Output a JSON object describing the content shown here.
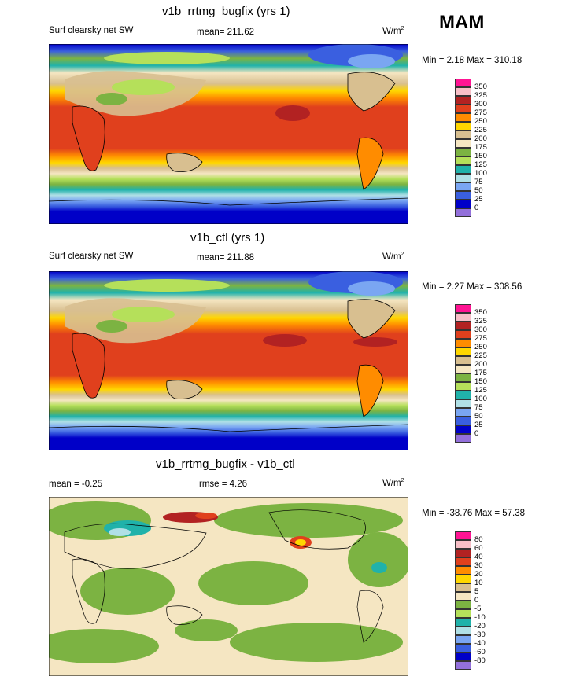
{
  "season": "MAM",
  "panels": [
    {
      "title": "v1b_rrtmg_bugfix (yrs 1)",
      "left_label": "Surf clearsky net SW",
      "center_label": "mean= 211.62",
      "units": "W/m",
      "units_sup": "2",
      "minmax": "Min =   2.18 Max = 310.18",
      "colorbar": {
        "labels": [
          "350",
          "325",
          "300",
          "275",
          "250",
          "225",
          "200",
          "175",
          "150",
          "125",
          "100",
          "75",
          "50",
          "25",
          "0"
        ],
        "colors": [
          "#ff1493",
          "#f7bfc7",
          "#b22222",
          "#e0401d",
          "#ff8c00",
          "#ffd700",
          "#d8bf90",
          "#f5e6c2",
          "#7cb342",
          "#b5e05a",
          "#20b2aa",
          "#b0e0e6",
          "#7aa6f2",
          "#3a5fe0",
          "#0000c8",
          "#9370db"
        ]
      }
    },
    {
      "title": "v1b_ctl (yrs 1)",
      "left_label": "Surf clearsky net SW",
      "center_label": "mean= 211.88",
      "units": "W/m",
      "units_sup": "2",
      "minmax": "Min =   2.27 Max = 308.56",
      "colorbar": {
        "labels": [
          "350",
          "325",
          "300",
          "275",
          "250",
          "225",
          "200",
          "175",
          "150",
          "125",
          "100",
          "75",
          "50",
          "25",
          "0"
        ],
        "colors": [
          "#ff1493",
          "#f7bfc7",
          "#b22222",
          "#e0401d",
          "#ff8c00",
          "#ffd700",
          "#d8bf90",
          "#f5e6c2",
          "#7cb342",
          "#b5e05a",
          "#20b2aa",
          "#b0e0e6",
          "#7aa6f2",
          "#3a5fe0",
          "#0000c8",
          "#9370db"
        ]
      }
    },
    {
      "title": "v1b_rrtmg_bugfix - v1b_ctl",
      "left_label": "mean =  -0.25",
      "center_label": "rmse =   4.26",
      "units": "W/m",
      "units_sup": "2",
      "minmax": "Min = -38.76 Max =  57.38",
      "colorbar": {
        "labels": [
          "80",
          "60",
          "40",
          "30",
          "20",
          "10",
          "5",
          "0",
          "-5",
          "-10",
          "-20",
          "-30",
          "-40",
          "-60",
          "-80"
        ],
        "colors": [
          "#ff1493",
          "#f7bfc7",
          "#b22222",
          "#e0401d",
          "#ff8c00",
          "#ffd700",
          "#d8bf90",
          "#f5e6c2",
          "#7cb342",
          "#b5e05a",
          "#20b2aa",
          "#b0e0e6",
          "#7aa6f2",
          "#3a5fe0",
          "#0000c8",
          "#9370db"
        ]
      }
    }
  ]
}
